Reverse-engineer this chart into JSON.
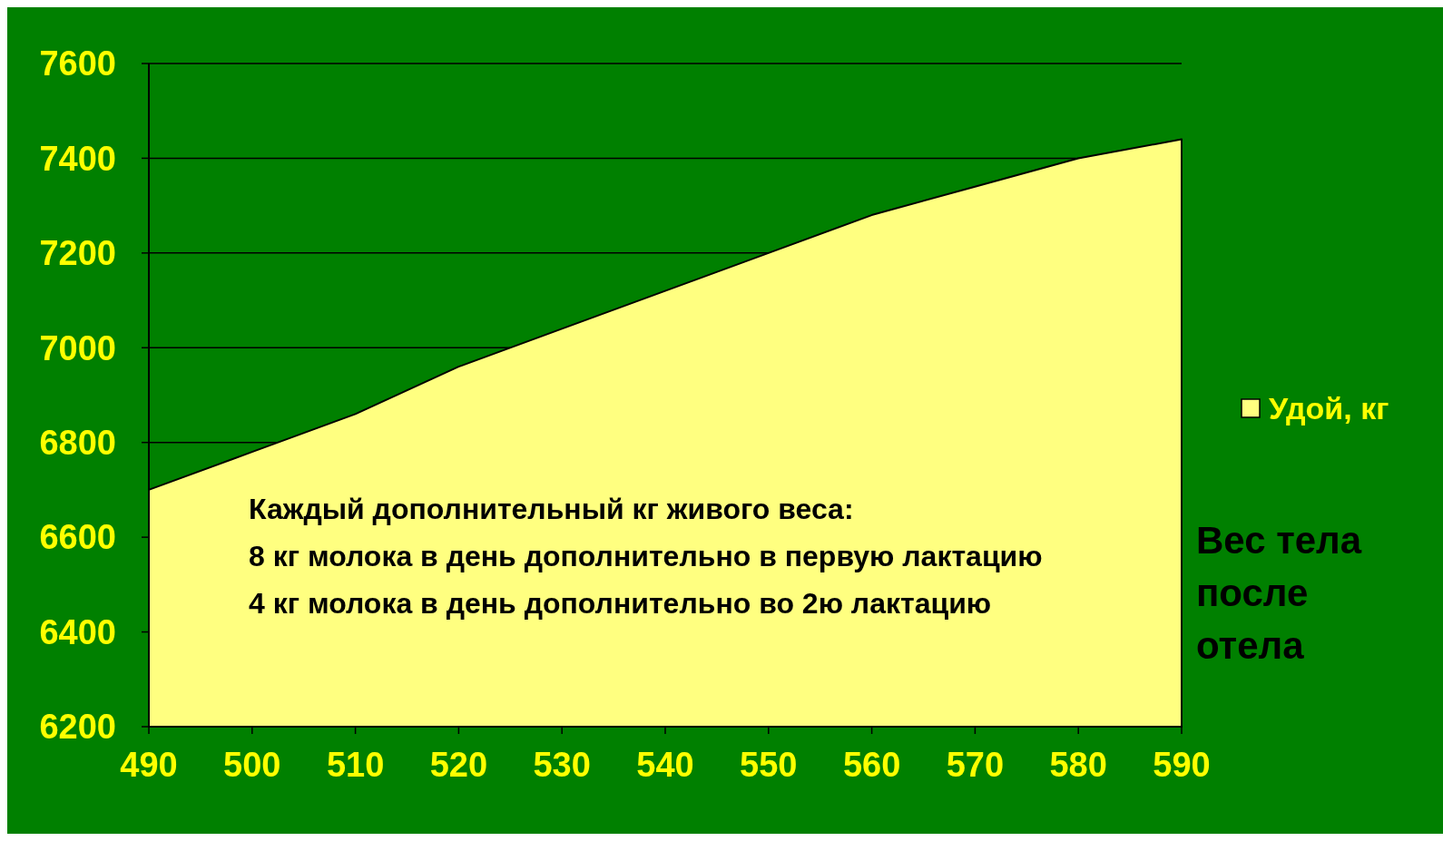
{
  "chart_data": {
    "type": "area",
    "xlabel": "Вес тела после отела",
    "x": [
      490,
      500,
      510,
      520,
      530,
      540,
      550,
      560,
      570,
      580,
      590
    ],
    "series": [
      {
        "name": "Удой, кг",
        "color": "#ffff80",
        "values": [
          6700,
          6780,
          6860,
          6960,
          7040,
          7120,
          7200,
          7280,
          7340,
          7400,
          7440
        ]
      }
    ],
    "xlim": [
      490,
      590
    ],
    "xticks": [
      490,
      500,
      510,
      520,
      530,
      540,
      550,
      560,
      570,
      580,
      590
    ],
    "ylim": [
      6200,
      7600
    ],
    "yticks": [
      6200,
      6400,
      6600,
      6800,
      7000,
      7200,
      7400,
      7600
    ],
    "grid": "y",
    "legend": "right",
    "annotations": [
      "Каждый дополнительный кг живого веса:",
      "8 кг молока в день дополнительно в первую лактацию",
      "4 кг молока в день дополнительно во 2ю лактацию"
    ]
  }
}
